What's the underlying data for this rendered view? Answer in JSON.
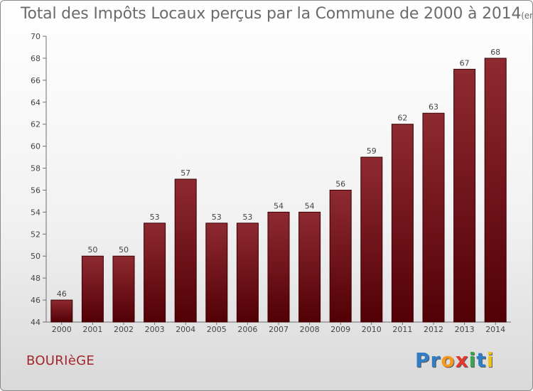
{
  "title": {
    "main": "Total des Impôts Locaux perçus par la Commune de 2000 à 2014",
    "unit": "(en milliers d'€)"
  },
  "commune": "BOURIèGE",
  "logo": {
    "letters": [
      {
        "ch": "P",
        "color": "#2e7fc8"
      },
      {
        "ch": "r",
        "color": "#2e7fc8"
      },
      {
        "ch": "o",
        "color": "#f39a1e"
      },
      {
        "ch": "x",
        "color": "#e53a2a"
      },
      {
        "ch": "i",
        "color": "#3aa64c"
      },
      {
        "ch": "t",
        "color": "#2e7fc8"
      },
      {
        "ch": "i",
        "color": "#f1c40f"
      }
    ]
  },
  "chart_data": {
    "type": "bar",
    "title": "Total des Impôts Locaux perçus par la Commune de 2000 à 2014",
    "subtitle": "(en milliers d'€)",
    "xlabel": "",
    "ylabel": "",
    "categories": [
      "2000",
      "2001",
      "2002",
      "2003",
      "2004",
      "2005",
      "2006",
      "2007",
      "2008",
      "2009",
      "2010",
      "2011",
      "2012",
      "2013",
      "2014"
    ],
    "values": [
      46,
      50,
      50,
      53,
      57,
      53,
      53,
      54,
      54,
      56,
      59,
      62,
      63,
      67,
      68
    ],
    "ylim": [
      44,
      70
    ],
    "yticks": [
      44,
      46,
      48,
      50,
      52,
      54,
      56,
      58,
      60,
      62,
      64,
      66,
      68,
      70
    ],
    "grid": false,
    "bar_color": "#7b1318"
  }
}
